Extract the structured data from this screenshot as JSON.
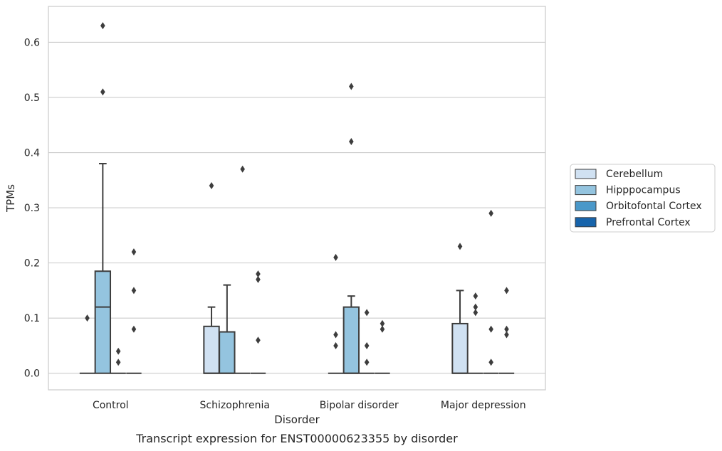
{
  "caption": "Transcript expression for ENST00000623355 by disorder",
  "chart_data": {
    "type": "box",
    "xlabel": "Disorder",
    "ylabel": "TPMs",
    "ylim": [
      -0.03,
      0.665
    ],
    "yticks": [
      0.0,
      0.1,
      0.2,
      0.3,
      0.4,
      0.5,
      0.6
    ],
    "grid": true,
    "legend_position": "right",
    "categories": [
      "Control",
      "Schizophrenia",
      "Bipolar disorder",
      "Major depression"
    ],
    "series": [
      {
        "name": "Cerebellum",
        "color": "#d0e1f2",
        "boxes": [
          {
            "q1": 0,
            "median": 0,
            "q3": 0,
            "whislo": 0,
            "whishi": 0,
            "fliers": [
              0.1
            ]
          },
          {
            "q1": 0,
            "median": 0,
            "q3": 0.085,
            "whislo": 0,
            "whishi": 0.12,
            "fliers": [
              0.34
            ]
          },
          {
            "q1": 0,
            "median": 0,
            "q3": 0,
            "whislo": 0,
            "whishi": 0,
            "fliers": [
              0.21,
              0.07,
              0.05
            ]
          },
          {
            "q1": 0,
            "median": 0,
            "q3": 0.09,
            "whislo": 0,
            "whishi": 0.15,
            "fliers": [
              0.23
            ]
          }
        ]
      },
      {
        "name": "Hipppocampus",
        "color": "#94c4df",
        "boxes": [
          {
            "q1": 0,
            "median": 0.12,
            "q3": 0.185,
            "whislo": 0,
            "whishi": 0.38,
            "fliers": [
              0.63,
              0.51
            ]
          },
          {
            "q1": 0,
            "median": 0,
            "q3": 0.075,
            "whislo": 0,
            "whishi": 0.16,
            "fliers": []
          },
          {
            "q1": 0,
            "median": 0,
            "q3": 0.12,
            "whislo": 0,
            "whishi": 0.14,
            "fliers": [
              0.52,
              0.42
            ]
          },
          {
            "q1": 0,
            "median": 0,
            "q3": 0,
            "whislo": 0,
            "whishi": 0,
            "fliers": [
              0.14,
              0.12,
              0.11
            ]
          }
        ]
      },
      {
        "name": "Orbitofontal Cortex",
        "color": "#4a98c9",
        "boxes": [
          {
            "q1": 0,
            "median": 0,
            "q3": 0,
            "whislo": 0,
            "whishi": 0,
            "fliers": [
              0.04,
              0.02
            ]
          },
          {
            "q1": 0,
            "median": 0,
            "q3": 0,
            "whislo": 0,
            "whishi": 0,
            "fliers": [
              0.37
            ]
          },
          {
            "q1": 0,
            "median": 0,
            "q3": 0,
            "whislo": 0,
            "whishi": 0,
            "fliers": [
              0.11,
              0.05,
              0.02
            ]
          },
          {
            "q1": 0,
            "median": 0,
            "q3": 0,
            "whislo": 0,
            "whishi": 0,
            "fliers": [
              0.29,
              0.08,
              0.02
            ]
          }
        ]
      },
      {
        "name": "Prefrontal Cortex",
        "color": "#1764ab",
        "boxes": [
          {
            "q1": 0,
            "median": 0,
            "q3": 0,
            "whislo": 0,
            "whishi": 0,
            "fliers": [
              0.22,
              0.15,
              0.08
            ]
          },
          {
            "q1": 0,
            "median": 0,
            "q3": 0,
            "whislo": 0,
            "whishi": 0,
            "fliers": [
              0.18,
              0.17,
              0.06
            ]
          },
          {
            "q1": 0,
            "median": 0,
            "q3": 0,
            "whislo": 0,
            "whishi": 0,
            "fliers": [
              0.09,
              0.08
            ]
          },
          {
            "q1": 0,
            "median": 0,
            "q3": 0,
            "whislo": 0,
            "whishi": 0,
            "fliers": [
              0.15,
              0.08,
              0.07
            ]
          }
        ]
      }
    ]
  }
}
